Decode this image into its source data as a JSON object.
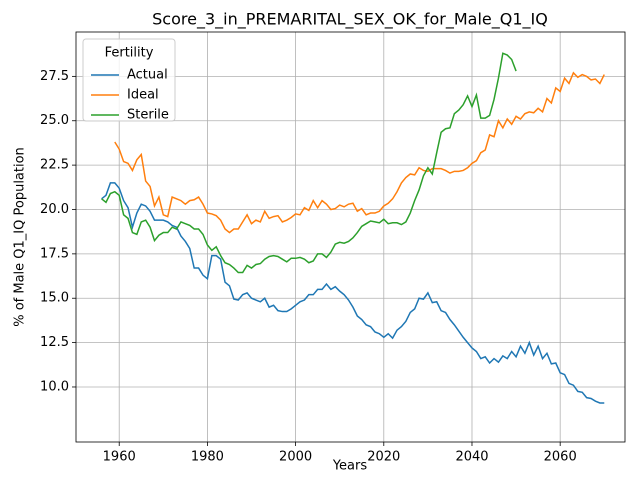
{
  "chart_data": {
    "type": "line",
    "title": "Score_3_in_PREMARITAL_SEX_OK_for_Male_Q1_IQ",
    "xlabel": "Years",
    "ylabel": "% of Male Q1_IQ Population",
    "legend_title": "Fertility",
    "legend": "upper left",
    "grid": true,
    "xlim": [
      1950.2,
      2074.7
    ],
    "ylim": [
      6.9,
      30.0
    ],
    "xticks": [
      1960,
      1980,
      2000,
      2020,
      2040,
      2060
    ],
    "yticks": [
      {
        "value": 10,
        "label": "10.0"
      },
      12.5,
      {
        "value": 15,
        "label": "15.0"
      },
      17.5,
      {
        "value": 20,
        "label": "20.0"
      },
      22.5,
      {
        "value": 25,
        "label": "25.0"
      },
      27.5
    ],
    "series": [
      {
        "name": "Actual",
        "color": "#1f77b4",
        "x": [
          1956,
          1957,
          1958,
          1959,
          1960,
          1961,
          1962,
          1963,
          1964,
          1965,
          1966,
          1967,
          1968,
          1969,
          1970,
          1971,
          1972,
          1973,
          1974,
          1975,
          1976,
          1977,
          1978,
          1979,
          1980,
          1981,
          1982,
          1983,
          1984,
          1985,
          1986,
          1987,
          1988,
          1989,
          1990,
          1991,
          1992,
          1993,
          1994,
          1995,
          1996,
          1997,
          1998,
          1999,
          2000,
          2001,
          2002,
          2003,
          2004,
          2005,
          2006,
          2007,
          2008,
          2009,
          2010,
          2011,
          2012,
          2013,
          2014,
          2015,
          2016,
          2017,
          2018,
          2019,
          2020,
          2021,
          2022,
          2023,
          2024,
          2025,
          2026,
          2027,
          2028,
          2029,
          2030,
          2031,
          2032,
          2033,
          2034,
          2035,
          2036,
          2037,
          2038,
          2039,
          2040,
          2041,
          2042,
          2043,
          2044,
          2045,
          2046,
          2047,
          2048,
          2049,
          2050,
          2051,
          2052,
          2053,
          2054,
          2055,
          2056,
          2057,
          2058,
          2059,
          2060,
          2061,
          2062,
          2063,
          2064,
          2065,
          2066,
          2067,
          2068,
          2069,
          2070
        ],
        "values": [
          20.6,
          20.8,
          21.5,
          21.5,
          21.2,
          20.5,
          20.1,
          19.0,
          19.8,
          20.3,
          20.2,
          19.9,
          19.4,
          19.4,
          19.4,
          19.3,
          19.1,
          19.0,
          18.5,
          18.2,
          17.8,
          16.7,
          16.7,
          16.3,
          16.1,
          17.4,
          17.4,
          17.2,
          15.9,
          15.7,
          14.95,
          14.9,
          15.2,
          15.3,
          15.0,
          14.9,
          14.8,
          15.0,
          14.5,
          14.6,
          14.3,
          14.25,
          14.25,
          14.4,
          14.6,
          14.8,
          14.9,
          15.2,
          15.2,
          15.5,
          15.5,
          15.8,
          15.5,
          15.65,
          15.4,
          15.2,
          14.9,
          14.5,
          14.0,
          13.8,
          13.5,
          13.4,
          13.1,
          13.0,
          12.8,
          13.0,
          12.75,
          13.2,
          13.4,
          13.7,
          14.2,
          14.4,
          15.0,
          14.95,
          15.3,
          14.75,
          14.8,
          14.3,
          14.2,
          13.8,
          13.5,
          13.15,
          12.8,
          12.5,
          12.2,
          12.0,
          11.6,
          11.7,
          11.35,
          11.6,
          11.4,
          11.75,
          11.6,
          12.0,
          11.7,
          12.3,
          11.9,
          12.5,
          11.8,
          12.3,
          11.6,
          11.9,
          11.3,
          11.35,
          10.8,
          10.7,
          10.2,
          10.1,
          9.75,
          9.7,
          9.4,
          9.35,
          9.2,
          9.1,
          9.1
        ]
      },
      {
        "name": "Ideal",
        "color": "#ff7f0e",
        "x": [
          1959,
          1960,
          1961,
          1962,
          1963,
          1964,
          1965,
          1966,
          1967,
          1968,
          1969,
          1970,
          1971,
          1972,
          1973,
          1974,
          1975,
          1976,
          1977,
          1978,
          1979,
          1980,
          1981,
          1982,
          1983,
          1984,
          1985,
          1986,
          1987,
          1988,
          1989,
          1990,
          1991,
          1992,
          1993,
          1994,
          1995,
          1996,
          1997,
          1998,
          1999,
          2000,
          2001,
          2002,
          2003,
          2004,
          2005,
          2006,
          2007,
          2008,
          2009,
          2010,
          2011,
          2012,
          2013,
          2014,
          2015,
          2016,
          2017,
          2018,
          2019,
          2020,
          2021,
          2022,
          2023,
          2024,
          2025,
          2026,
          2027,
          2028,
          2029,
          2030,
          2031,
          2032,
          2033,
          2034,
          2035,
          2036,
          2037,
          2038,
          2039,
          2040,
          2041,
          2042,
          2043,
          2044,
          2045,
          2046,
          2047,
          2048,
          2049,
          2050,
          2051,
          2052,
          2053,
          2054,
          2055,
          2056,
          2057,
          2058,
          2059,
          2060,
          2061,
          2062,
          2063,
          2064,
          2065,
          2066,
          2067,
          2068,
          2069,
          2070
        ],
        "values": [
          23.8,
          23.4,
          22.7,
          22.6,
          22.2,
          22.8,
          23.1,
          21.6,
          21.3,
          20.2,
          20.7,
          19.7,
          19.6,
          20.7,
          20.6,
          20.5,
          20.3,
          20.5,
          20.55,
          20.7,
          20.3,
          19.8,
          19.75,
          19.65,
          19.4,
          18.9,
          18.7,
          18.9,
          18.9,
          19.3,
          19.7,
          19.2,
          19.4,
          19.3,
          19.9,
          19.5,
          19.6,
          19.65,
          19.3,
          19.4,
          19.55,
          19.75,
          19.7,
          20.1,
          19.95,
          20.5,
          20.1,
          20.5,
          20.3,
          20.0,
          20.05,
          20.25,
          20.15,
          20.3,
          20.35,
          19.9,
          20.05,
          19.7,
          19.8,
          19.8,
          19.9,
          20.2,
          20.35,
          20.6,
          21.0,
          21.5,
          21.8,
          22.0,
          21.95,
          22.35,
          22.2,
          22.15,
          22.3,
          22.3,
          22.3,
          22.2,
          22.05,
          22.15,
          22.15,
          22.2,
          22.35,
          22.6,
          22.75,
          23.2,
          23.35,
          24.2,
          24.1,
          25.0,
          24.6,
          25.1,
          24.8,
          25.25,
          25.1,
          25.4,
          25.5,
          25.45,
          25.7,
          25.5,
          26.25,
          26.0,
          26.85,
          26.65,
          27.4,
          27.1,
          27.7,
          27.45,
          27.6,
          27.5,
          27.3,
          27.35,
          27.1,
          27.6
        ]
      },
      {
        "name": "Sterile",
        "color": "#2ca02c",
        "x": [
          1956,
          1957,
          1958,
          1959,
          1960,
          1961,
          1962,
          1963,
          1964,
          1965,
          1966,
          1967,
          1968,
          1969,
          1970,
          1971,
          1972,
          1973,
          1974,
          1975,
          1976,
          1977,
          1978,
          1979,
          1980,
          1981,
          1982,
          1983,
          1984,
          1985,
          1986,
          1987,
          1988,
          1989,
          1990,
          1991,
          1992,
          1993,
          1994,
          1995,
          1996,
          1997,
          1998,
          1999,
          2000,
          2001,
          2002,
          2003,
          2004,
          2005,
          2006,
          2007,
          2008,
          2009,
          2010,
          2011,
          2012,
          2013,
          2014,
          2015,
          2016,
          2017,
          2018,
          2019,
          2020,
          2021,
          2022,
          2023,
          2024,
          2025,
          2026,
          2027,
          2028,
          2029,
          2030,
          2031,
          2032,
          2033,
          2034,
          2035,
          2036,
          2037,
          2038,
          2039,
          2040,
          2041,
          2042,
          2043,
          2044,
          2045,
          2046,
          2047,
          2048,
          2049,
          2050
        ],
        "values": [
          20.6,
          20.4,
          20.9,
          21.0,
          20.8,
          19.7,
          19.5,
          18.7,
          18.6,
          19.3,
          19.4,
          19.0,
          18.25,
          18.55,
          18.7,
          18.7,
          19.0,
          18.9,
          19.3,
          19.2,
          19.1,
          18.9,
          18.9,
          18.6,
          18.0,
          17.7,
          17.9,
          17.4,
          17.0,
          16.9,
          16.7,
          16.45,
          16.45,
          16.85,
          16.7,
          16.9,
          16.95,
          17.2,
          17.35,
          17.4,
          17.35,
          17.2,
          17.05,
          17.25,
          17.25,
          17.3,
          17.2,
          17.0,
          17.1,
          17.5,
          17.5,
          17.3,
          17.6,
          18.05,
          18.15,
          18.1,
          18.2,
          18.4,
          18.7,
          19.05,
          19.2,
          19.35,
          19.3,
          19.25,
          19.45,
          19.2,
          19.25,
          19.25,
          19.15,
          19.3,
          19.8,
          20.5,
          21.1,
          21.9,
          22.35,
          22.0,
          23.2,
          24.35,
          24.55,
          24.6,
          25.4,
          25.6,
          25.9,
          26.4,
          25.8,
          26.45,
          25.15,
          25.15,
          25.3,
          26.2,
          27.4,
          28.8,
          28.7,
          28.45,
          27.8
        ]
      }
    ]
  }
}
